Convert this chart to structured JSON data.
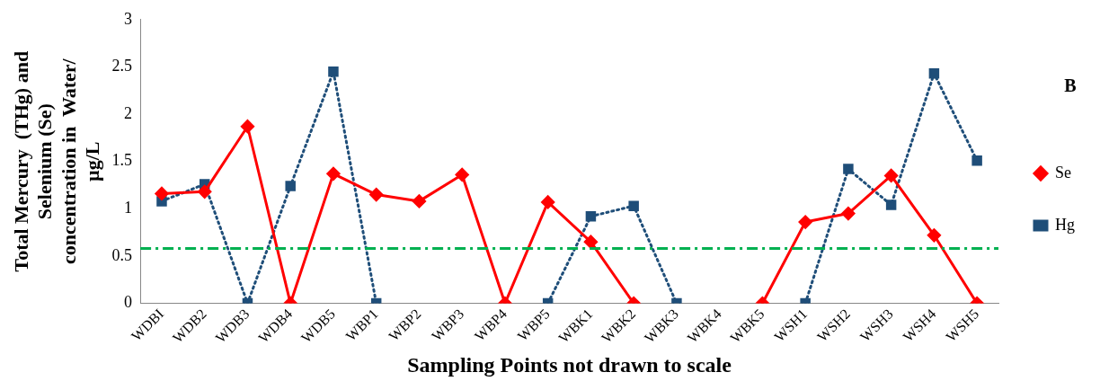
{
  "chart_data": {
    "type": "line",
    "xlabel": "Sampling Points not drawn to scale",
    "ylabel": "Total Mercury  (THg) and Selenium (Se) concentration in  Water/ µg/L",
    "categories": [
      "WDBI",
      "WDB2",
      "WDB3",
      "WDB4",
      "WDB5",
      "WBP1",
      "WBP2",
      "WBP3",
      "WBP4",
      "WBP5",
      "WBK1",
      "WBK2",
      "WBK3",
      "WBK4",
      "WBK5",
      "WSH1",
      "WSH2",
      "WSH3",
      "WSH4",
      "WSH5"
    ],
    "series": [
      {
        "name": "Se",
        "color": "#ff0000",
        "marker": "diamond",
        "line_style": "solid",
        "values": [
          1.16,
          1.18,
          1.87,
          0,
          1.37,
          1.15,
          1.08,
          1.36,
          0,
          1.07,
          0.65,
          0,
          null,
          null,
          0,
          0.86,
          0.95,
          1.35,
          0.72,
          0
        ]
      },
      {
        "name": "Hg",
        "color": "#1f4e79",
        "marker": "square",
        "line_style": "dotted",
        "values": [
          1.08,
          1.26,
          0,
          1.24,
          2.45,
          0,
          null,
          null,
          null,
          0,
          0.92,
          1.03,
          0,
          null,
          null,
          0,
          1.42,
          1.04,
          2.43,
          1.51
        ]
      }
    ],
    "ylim": [
      0,
      3
    ],
    "yticks": [
      0,
      0.5,
      1,
      1.5,
      2,
      2.5,
      3
    ],
    "grid": false,
    "legend": "right",
    "ref_lines": [
      {
        "axis": "y",
        "value": 0.58,
        "color": "#00b050",
        "line_style": "dashdot"
      }
    ],
    "annotations": [
      "B"
    ]
  }
}
